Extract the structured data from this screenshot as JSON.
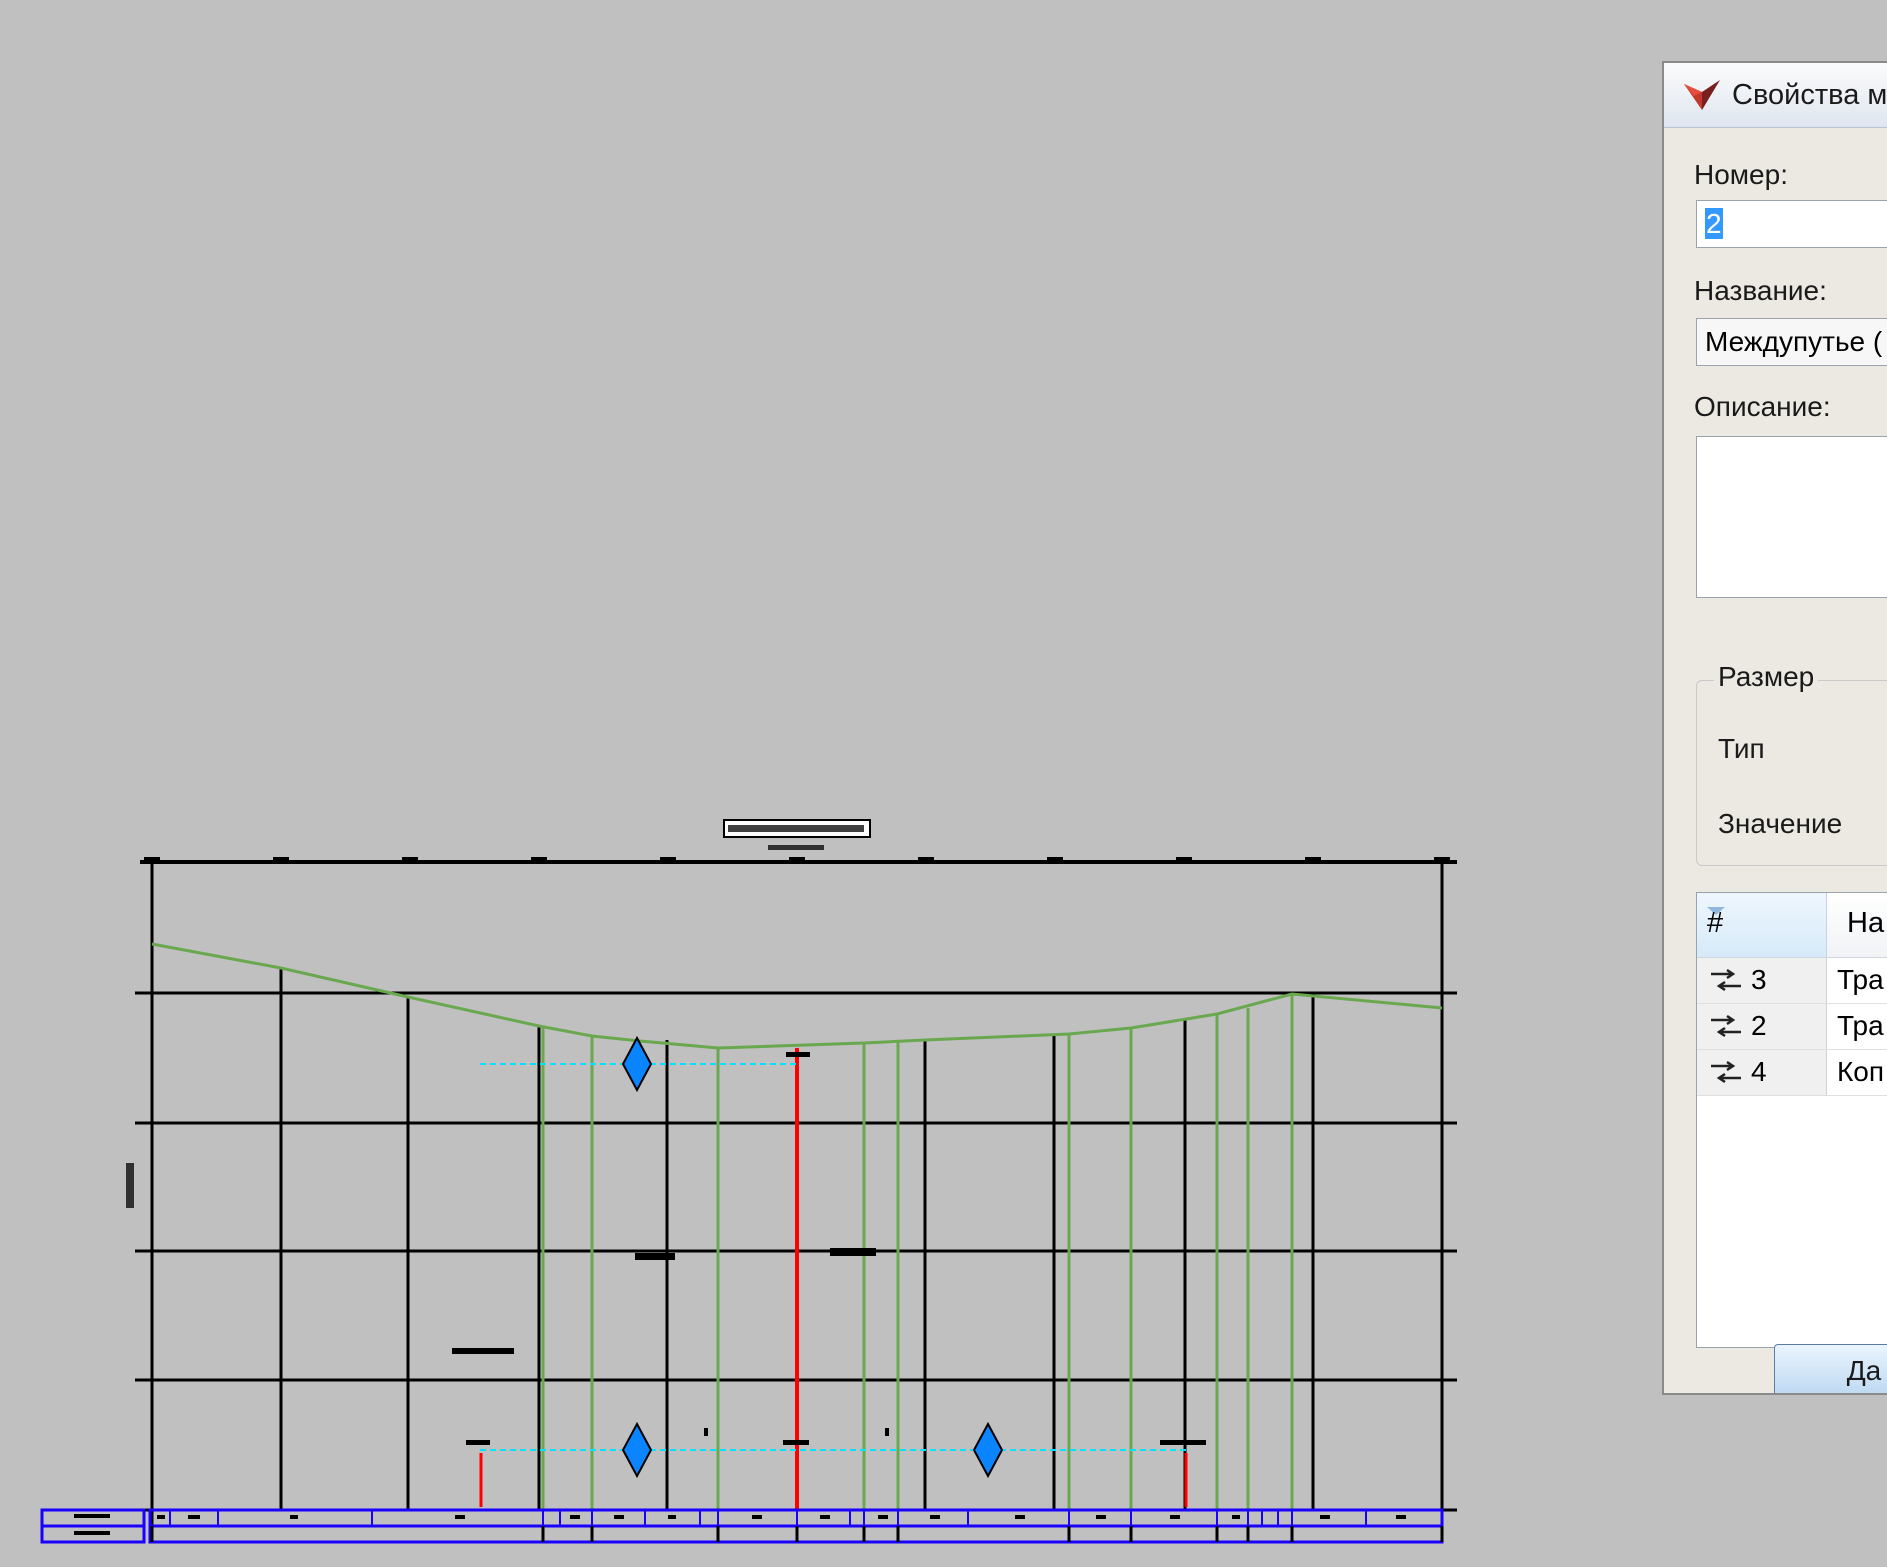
{
  "dialog": {
    "title": "Свойства м",
    "number_label": "Номер:",
    "number_value": "2",
    "name_label": "Название:",
    "name_value": "Междупутье (",
    "description_label": "Описание:",
    "description_value": "",
    "size_group": {
      "title": "Размер",
      "type_label": "Тип",
      "value_label": "Значение"
    },
    "table": {
      "columns": [
        "#",
        "На"
      ],
      "rows": [
        {
          "num": "3",
          "name": "Тра"
        },
        {
          "num": "2",
          "name": "Тра"
        },
        {
          "num": "4",
          "name": "Коп"
        }
      ]
    },
    "ok_label": "Да"
  },
  "colors": {
    "background": "#c0c0c0",
    "grid": "#000000",
    "ground_line": "#6aa84f",
    "red_marker": "#ff0000",
    "dashed_line": "#00e5ff",
    "diamond": "#0a84ff",
    "bottom_band": "#1a00ff"
  }
}
